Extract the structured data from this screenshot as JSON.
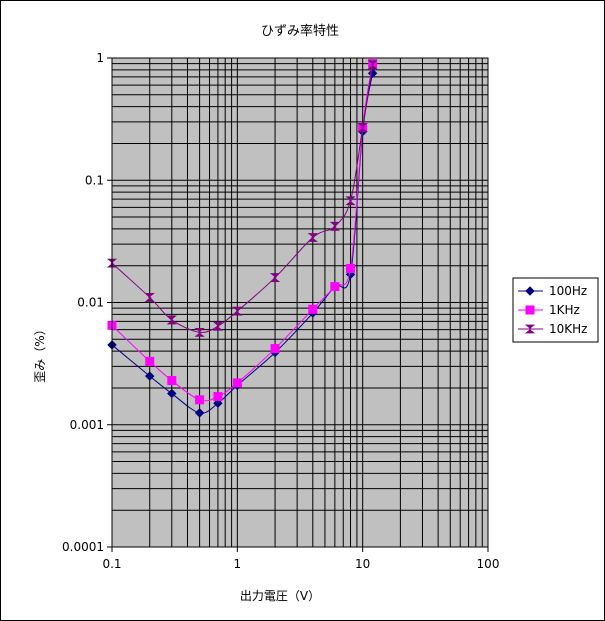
{
  "chart_data": {
    "type": "line",
    "title": "ひずみ率特性",
    "xlabel": "出力電圧（V）",
    "ylabel": "歪み（%）",
    "x_scale": "log",
    "y_scale": "log",
    "xlim": [
      0.1,
      100
    ],
    "ylim": [
      0.0001,
      1
    ],
    "x_ticks": [
      "0.1",
      "1",
      "10",
      "100"
    ],
    "y_ticks": [
      "0.0001",
      "0.001",
      "0.01",
      "0.1",
      "1"
    ],
    "grid": true,
    "legend_position": "right",
    "plot_background": "#c0c0c0",
    "series": [
      {
        "name": "100Hz",
        "color": "#000080",
        "marker": "diamond",
        "points": [
          [
            0.1,
            0.0045
          ],
          [
            0.2,
            0.0025
          ],
          [
            0.3,
            0.0018
          ],
          [
            0.5,
            0.00125
          ],
          [
            0.7,
            0.0015
          ],
          [
            1,
            0.0021
          ],
          [
            2,
            0.0039
          ],
          [
            4,
            0.0082
          ],
          [
            6,
            0.0135
          ],
          [
            8,
            0.017
          ],
          [
            10,
            0.25
          ],
          [
            12,
            0.75
          ]
        ]
      },
      {
        "name": "1KHz",
        "color": "#ff00ff",
        "marker": "square",
        "points": [
          [
            0.1,
            0.0065
          ],
          [
            0.2,
            0.0033
          ],
          [
            0.3,
            0.0023
          ],
          [
            0.5,
            0.0016
          ],
          [
            0.7,
            0.0017
          ],
          [
            1,
            0.0022
          ],
          [
            2,
            0.0042
          ],
          [
            4,
            0.0088
          ],
          [
            6,
            0.0135
          ],
          [
            8,
            0.019
          ],
          [
            10,
            0.27
          ],
          [
            12,
            0.9
          ]
        ]
      },
      {
        "name": "10KHz",
        "color": "#800080",
        "marker": "hourglass",
        "points": [
          [
            0.1,
            0.021
          ],
          [
            0.2,
            0.011
          ],
          [
            0.3,
            0.0072
          ],
          [
            0.5,
            0.0057
          ],
          [
            0.7,
            0.0064
          ],
          [
            1,
            0.0085
          ],
          [
            2,
            0.016
          ],
          [
            4,
            0.034
          ],
          [
            6,
            0.042
          ],
          [
            8,
            0.068
          ],
          [
            10,
            0.27
          ],
          [
            12,
            0.88
          ]
        ]
      }
    ]
  }
}
